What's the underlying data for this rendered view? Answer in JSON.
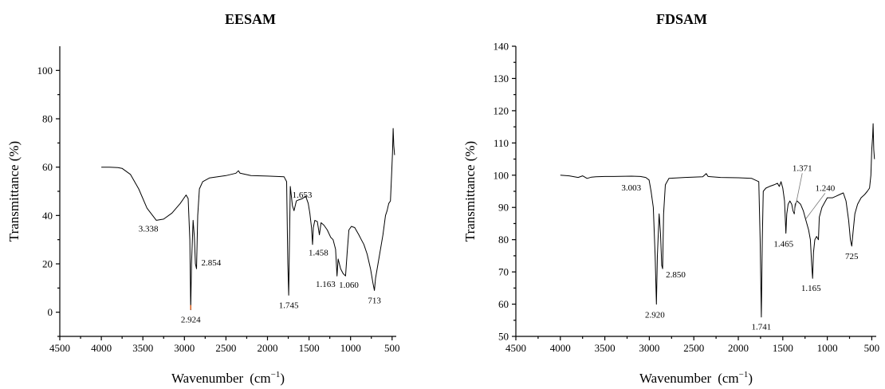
{
  "chart_data": [
    {
      "type": "line",
      "title": "EESAM",
      "xlabel": "Wavenumber",
      "xlabel_unit": "(cm",
      "xlabel_unit_sup": "−1",
      "xlabel_unit_close": ")",
      "ylabel": "Transmittance  (%)",
      "xlim": [
        4500,
        450
      ],
      "ylim": [
        -10,
        110
      ],
      "xticks": [
        "4500",
        "4000",
        "3500",
        "3000",
        "2500",
        "2000",
        "1500",
        "1000",
        "500"
      ],
      "yticks": [
        "0",
        "20",
        "40",
        "60",
        "80",
        "100"
      ],
      "grid": false,
      "series": [
        {
          "points": [
            [
              4000,
              60
            ],
            [
              3900,
              60
            ],
            [
              3800,
              59.8
            ],
            [
              3750,
              59.5
            ],
            [
              3650,
              57
            ],
            [
              3550,
              51
            ],
            [
              3450,
              43
            ],
            [
              3338,
              38
            ],
            [
              3250,
              38.5
            ],
            [
              3150,
              41
            ],
            [
              3050,
              45
            ],
            [
              2980,
              48.5
            ],
            [
              2955,
              47
            ],
            [
              2935,
              30
            ],
            [
              2924,
              1
            ],
            [
              2915,
              20
            ],
            [
              2895,
              38
            ],
            [
              2880,
              31
            ],
            [
              2868,
              20
            ],
            [
              2854,
              18
            ],
            [
              2840,
              40
            ],
            [
              2820,
              51
            ],
            [
              2780,
              54
            ],
            [
              2700,
              55.5
            ],
            [
              2500,
              56.5
            ],
            [
              2380,
              57.5
            ],
            [
              2350,
              58.5
            ],
            [
              2330,
              57.5
            ],
            [
              2200,
              56.5
            ],
            [
              2000,
              56.3
            ],
            [
              1800,
              56
            ],
            [
              1770,
              54
            ],
            [
              1755,
              20
            ],
            [
              1745,
              7
            ],
            [
              1735,
              30
            ],
            [
              1725,
              52
            ],
            [
              1700,
              44
            ],
            [
              1680,
              42
            ],
            [
              1653,
              46
            ],
            [
              1620,
              46.5
            ],
            [
              1580,
              47
            ],
            [
              1540,
              48
            ],
            [
              1510,
              45
            ],
            [
              1490,
              41
            ],
            [
              1470,
              35
            ],
            [
              1458,
              28
            ],
            [
              1448,
              35
            ],
            [
              1430,
              38
            ],
            [
              1400,
              37.5
            ],
            [
              1375,
              32
            ],
            [
              1355,
              37
            ],
            [
              1320,
              36
            ],
            [
              1280,
              34
            ],
            [
              1240,
              31
            ],
            [
              1210,
              30
            ],
            [
              1180,
              26
            ],
            [
              1163,
              15
            ],
            [
              1150,
              22
            ],
            [
              1120,
              18
            ],
            [
              1090,
              16
            ],
            [
              1060,
              15
            ],
            [
              1040,
              25
            ],
            [
              1020,
              34
            ],
            [
              990,
              35.5
            ],
            [
              950,
              35
            ],
            [
              900,
              32
            ],
            [
              870,
              30
            ],
            [
              840,
              28
            ],
            [
              800,
              24
            ],
            [
              760,
              18
            ],
            [
              730,
              12
            ],
            [
              713,
              9
            ],
            [
              700,
              14
            ],
            [
              670,
              20
            ],
            [
              640,
              26
            ],
            [
              610,
              32
            ],
            [
              580,
              40
            ],
            [
              560,
              42
            ],
            [
              540,
              45
            ],
            [
              520,
              46
            ],
            [
              505,
              58
            ],
            [
              495,
              66
            ],
            [
              487,
              76
            ],
            [
              480,
              69
            ],
            [
              470,
              65
            ]
          ]
        }
      ],
      "annotations": [
        {
          "label": "3.338",
          "x": 3338,
          "y": 38
        },
        {
          "label": "2.924",
          "x": 2924,
          "y": 1
        },
        {
          "label": "2.854",
          "x": 2854,
          "y": 18
        },
        {
          "label": "1.745",
          "x": 1745,
          "y": 7
        },
        {
          "label": "1.653",
          "x": 1653,
          "y": 46
        },
        {
          "label": "1.458",
          "x": 1458,
          "y": 28
        },
        {
          "label": "1.163",
          "x": 1163,
          "y": 15
        },
        {
          "label": "1.060",
          "x": 1060,
          "y": 15
        },
        {
          "label": "713",
          "x": 713,
          "y": 9
        }
      ],
      "highlight_color": "#d95f1e"
    },
    {
      "type": "line",
      "title": "FDSAM",
      "xlabel": "Wavenumber",
      "xlabel_unit": "(cm",
      "xlabel_unit_sup": "−1",
      "xlabel_unit_close": ")",
      "ylabel": "Transmittance  (%)",
      "xlim": [
        4500,
        450
      ],
      "ylim": [
        50,
        140
      ],
      "xticks": [
        "4500",
        "4000",
        "3500",
        "3000",
        "2500",
        "2000",
        "1500",
        "1000",
        "500"
      ],
      "yticks": [
        "50",
        "60",
        "70",
        "80",
        "90",
        "100",
        "110",
        "120",
        "130",
        "140"
      ],
      "grid": false,
      "series": [
        {
          "points": [
            [
              4000,
              100
            ],
            [
              3900,
              99.8
            ],
            [
              3800,
              99.3
            ],
            [
              3750,
              99.8
            ],
            [
              3700,
              99
            ],
            [
              3650,
              99.4
            ],
            [
              3600,
              99.5
            ],
            [
              3500,
              99.6
            ],
            [
              3400,
              99.6
            ],
            [
              3200,
              99.7
            ],
            [
              3100,
              99.6
            ],
            [
              3040,
              99.3
            ],
            [
              3003,
              98.5
            ],
            [
              2980,
              95
            ],
            [
              2955,
              90
            ],
            [
              2935,
              75
            ],
            [
              2920,
              60
            ],
            [
              2910,
              75
            ],
            [
              2890,
              88
            ],
            [
              2875,
              82
            ],
            [
              2860,
              72
            ],
            [
              2850,
              71
            ],
            [
              2840,
              88
            ],
            [
              2820,
              97
            ],
            [
              2780,
              99
            ],
            [
              2600,
              99.3
            ],
            [
              2400,
              99.5
            ],
            [
              2360,
              100.5
            ],
            [
              2340,
              99.6
            ],
            [
              2200,
              99.3
            ],
            [
              2000,
              99.2
            ],
            [
              1850,
              99
            ],
            [
              1770,
              98
            ],
            [
              1755,
              80
            ],
            [
              1741,
              56
            ],
            [
              1730,
              80
            ],
            [
              1720,
              95
            ],
            [
              1690,
              96
            ],
            [
              1650,
              96.5
            ],
            [
              1600,
              97
            ],
            [
              1560,
              97.5
            ],
            [
              1540,
              96.5
            ],
            [
              1520,
              98
            ],
            [
              1500,
              96
            ],
            [
              1480,
              92
            ],
            [
              1465,
              82
            ],
            [
              1455,
              88
            ],
            [
              1440,
              91
            ],
            [
              1420,
              92
            ],
            [
              1400,
              91
            ],
            [
              1385,
              89
            ],
            [
              1371,
              88
            ],
            [
              1360,
              91
            ],
            [
              1340,
              92
            ],
            [
              1300,
              91
            ],
            [
              1270,
              89
            ],
            [
              1240,
              86
            ],
            [
              1210,
              83
            ],
            [
              1190,
              80
            ],
            [
              1175,
              72
            ],
            [
              1165,
              68
            ],
            [
              1155,
              76
            ],
            [
              1140,
              80
            ],
            [
              1120,
              81
            ],
            [
              1100,
              80
            ],
            [
              1090,
              87
            ],
            [
              1060,
              90
            ],
            [
              1000,
              93
            ],
            [
              940,
              93
            ],
            [
              900,
              93.5
            ],
            [
              860,
              94
            ],
            [
              820,
              94.5
            ],
            [
              790,
              92
            ],
            [
              760,
              86
            ],
            [
              740,
              80
            ],
            [
              725,
              78
            ],
            [
              712,
              82
            ],
            [
              690,
              88
            ],
            [
              660,
              91
            ],
            [
              620,
              93
            ],
            [
              580,
              94
            ],
            [
              550,
              95
            ],
            [
              525,
              96
            ],
            [
              510,
              100
            ],
            [
              500,
              108
            ],
            [
              490,
              112
            ],
            [
              485,
              116
            ],
            [
              478,
              108
            ],
            [
              470,
              105
            ]
          ]
        }
      ],
      "annotations": [
        {
          "label": "3.003",
          "x": 3003,
          "y": 98.5
        },
        {
          "label": "2.920",
          "x": 2920,
          "y": 60
        },
        {
          "label": "2.850",
          "x": 2850,
          "y": 71
        },
        {
          "label": "1.741",
          "x": 1741,
          "y": 56
        },
        {
          "label": "1.465",
          "x": 1465,
          "y": 82
        },
        {
          "label": "1.371",
          "x": 1371,
          "y": 88
        },
        {
          "label": "1.240",
          "x": 1240,
          "y": 86
        },
        {
          "label": "1.165",
          "x": 1165,
          "y": 68
        },
        {
          "label": "725",
          "x": 725,
          "y": 78
        }
      ]
    }
  ]
}
